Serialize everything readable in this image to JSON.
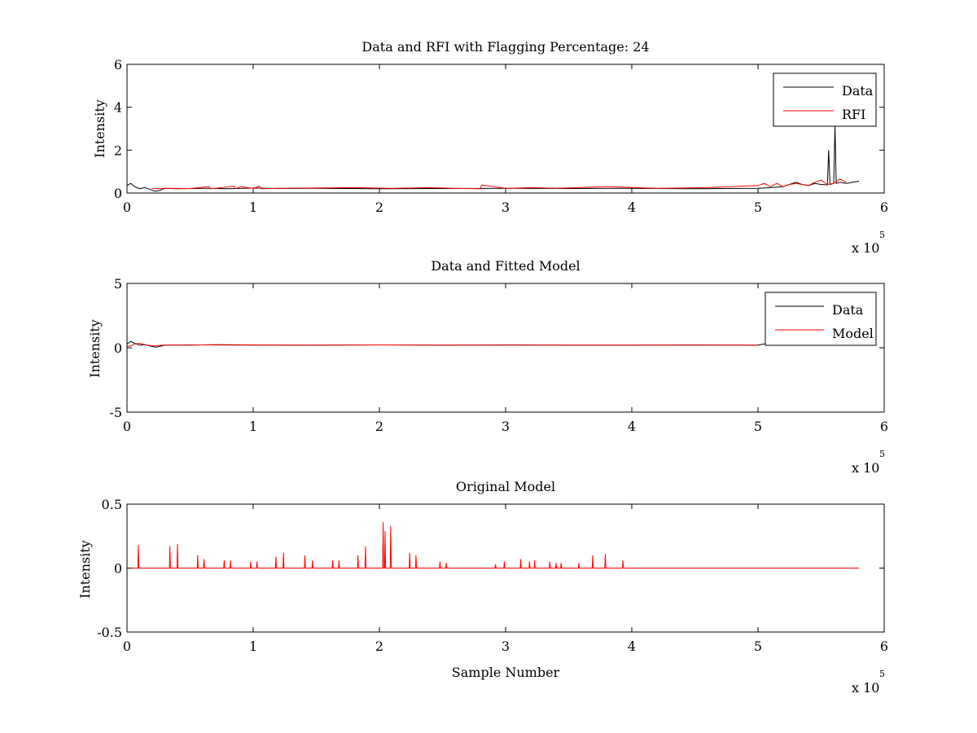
{
  "chart_data": [
    {
      "type": "line",
      "title": "Data and RFI with Flagging Percentage: 24",
      "xlabel": "",
      "ylabel": "Intensity",
      "xlim": [
        0,
        600000
      ],
      "ylim": [
        0,
        6
      ],
      "xticks": [
        0,
        1,
        2,
        3,
        4,
        5,
        6
      ],
      "yticks": [
        0,
        2,
        4,
        6
      ],
      "xtick_labels": [
        "0",
        "1",
        "2",
        "3",
        "4",
        "5",
        "6"
      ],
      "ytick_labels": [
        "0",
        "2",
        "4",
        "6"
      ],
      "x_multiplier": {
        "base": "x 10",
        "exponent": "5"
      },
      "legend_position": "top-right",
      "grid": false,
      "series": [
        {
          "name": "Data",
          "color": "#000000",
          "x": [
            0,
            3000,
            6000,
            10000,
            14000,
            18000,
            22000,
            26000,
            30000,
            40000,
            60000,
            80000,
            100000,
            120000,
            150000,
            200000,
            250000,
            300000,
            350000,
            400000,
            450000,
            500000,
            510000,
            520000,
            530000,
            535000,
            540000,
            545000,
            550000,
            555000,
            556000,
            557000,
            560000,
            561000,
            562000,
            565000,
            570000,
            575000,
            580000
          ],
          "y": [
            0.35,
            0.45,
            0.3,
            0.2,
            0.25,
            0.18,
            0.08,
            0.12,
            0.22,
            0.2,
            0.22,
            0.2,
            0.23,
            0.21,
            0.22,
            0.2,
            0.21,
            0.22,
            0.21,
            0.22,
            0.2,
            0.22,
            0.25,
            0.3,
            0.5,
            0.4,
            0.35,
            0.45,
            0.4,
            0.38,
            2.0,
            0.4,
            0.45,
            3.1,
            0.45,
            0.5,
            0.45,
            0.5,
            0.55
          ]
        },
        {
          "name": "RFI",
          "color": "#ff0000",
          "x": [
            20000,
            30000,
            50000,
            65000,
            66000,
            70000,
            85000,
            86000,
            90000,
            100000,
            105000,
            106000,
            120000,
            180000,
            210000,
            240000,
            260000,
            280000,
            281000,
            300000,
            320000,
            340000,
            380000,
            420000,
            460000,
            500000,
            505000,
            510000,
            515000,
            520000,
            525000,
            530000,
            540000,
            545000,
            550000,
            555000,
            560000,
            565000,
            570000
          ],
          "y": [
            0.2,
            0.22,
            0.21,
            0.3,
            0.2,
            0.22,
            0.32,
            0.2,
            0.3,
            0.22,
            0.32,
            0.2,
            0.22,
            0.25,
            0.22,
            0.25,
            0.22,
            0.2,
            0.38,
            0.22,
            0.25,
            0.22,
            0.3,
            0.22,
            0.25,
            0.35,
            0.45,
            0.3,
            0.45,
            0.3,
            0.4,
            0.45,
            0.35,
            0.5,
            0.6,
            0.4,
            0.45,
            0.65,
            0.5
          ]
        }
      ]
    },
    {
      "type": "line",
      "title": "Data and Fitted Model",
      "xlabel": "",
      "ylabel": "Intensity",
      "xlim": [
        0,
        600000
      ],
      "ylim": [
        -5,
        5
      ],
      "xticks": [
        0,
        1,
        2,
        3,
        4,
        5,
        6
      ],
      "yticks": [
        -5,
        0,
        5
      ],
      "xtick_labels": [
        "0",
        "1",
        "2",
        "3",
        "4",
        "5",
        "6"
      ],
      "ytick_labels": [
        "-5",
        "0",
        "5"
      ],
      "x_multiplier": {
        "base": "x 10",
        "exponent": "5"
      },
      "legend_position": "top-right",
      "grid": false,
      "series": [
        {
          "name": "Data",
          "color": "#000000",
          "x": [
            0,
            3000,
            6000,
            10000,
            14000,
            18000,
            22000,
            26000,
            30000,
            50000,
            100000,
            150000,
            200000,
            250000,
            300000,
            350000,
            400000,
            450000,
            500000,
            505000,
            510000
          ],
          "y": [
            0.3,
            0.5,
            0.35,
            0.2,
            0.25,
            0.15,
            0.05,
            0.1,
            0.2,
            0.22,
            0.21,
            0.2,
            0.22,
            0.21,
            0.22,
            0.21,
            0.2,
            0.22,
            0.21,
            0.3,
            0.4
          ]
        },
        {
          "name": "Model",
          "color": "#ff0000",
          "x": [
            0,
            3000,
            6000,
            10000,
            14000,
            20000,
            30000,
            50000,
            70000,
            100000,
            150000,
            200000,
            250000,
            300000,
            350000,
            400000,
            450000,
            500000
          ],
          "y": [
            0.1,
            0.15,
            0.3,
            0.35,
            0.25,
            0.15,
            0.2,
            0.2,
            0.25,
            0.22,
            0.2,
            0.22,
            0.2,
            0.21,
            0.2,
            0.21,
            0.2,
            0.2
          ]
        }
      ]
    },
    {
      "type": "line",
      "title": "Original Model",
      "xlabel": "Sample Number",
      "ylabel": "Intensity",
      "xlim": [
        0,
        600000
      ],
      "ylim": [
        -0.5,
        0.5
      ],
      "xticks": [
        0,
        1,
        2,
        3,
        4,
        5,
        6
      ],
      "yticks": [
        -0.5,
        0,
        0.5
      ],
      "xtick_labels": [
        "0",
        "1",
        "2",
        "3",
        "4",
        "5",
        "6"
      ],
      "ytick_labels": [
        "-0.5",
        "0",
        "0.5"
      ],
      "x_multiplier": {
        "base": "x 10",
        "exponent": "5"
      },
      "grid": false,
      "series": [
        {
          "color": "#ff0000",
          "peaks_x": [
            9000,
            34000,
            40000,
            56000,
            61000,
            77000,
            82000,
            98000,
            103000,
            118000,
            124000,
            141000,
            147000,
            163000,
            168000,
            183000,
            189000,
            203000,
            204500,
            209000,
            224000,
            229000,
            248000,
            253000,
            292000,
            299000,
            312000,
            319000,
            323000,
            335000,
            340000,
            344000,
            358000,
            369000,
            379000,
            393000
          ],
          "peaks_y": [
            0.18,
            0.17,
            0.19,
            0.1,
            0.07,
            0.06,
            0.06,
            0.05,
            0.05,
            0.09,
            0.12,
            0.1,
            0.06,
            0.06,
            0.06,
            0.1,
            0.17,
            0.36,
            0.29,
            0.33,
            0.12,
            0.1,
            0.05,
            0.04,
            0.03,
            0.05,
            0.07,
            0.05,
            0.06,
            0.05,
            0.04,
            0.04,
            0.04,
            0.1,
            0.11,
            0.06
          ],
          "baseline": 0,
          "x_end": 580000
        }
      ]
    }
  ]
}
